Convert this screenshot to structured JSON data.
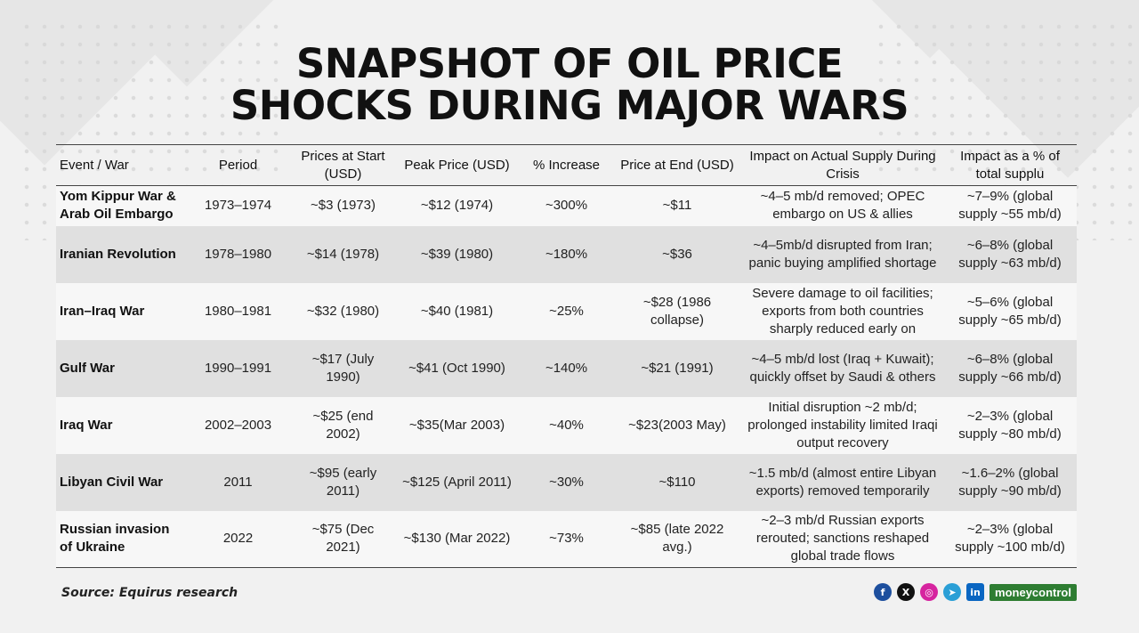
{
  "title": {
    "line1": "SNAPSHOT OF OIL PRICE",
    "line2": "SHOCKS DURING MAJOR WARS"
  },
  "table": {
    "headers": [
      "Event / War",
      "Period",
      "Prices at Start (USD)",
      "Peak Price (USD)",
      "% Increase",
      "Price at End (USD)",
      "Impact on Actual Supply During Crisis",
      "Impact as a % of total supplu"
    ],
    "rows": [
      [
        "Yom Kippur War & Arab Oil Embargo",
        "1973–1974",
        "~$3 (1973)",
        "~$12 (1974)",
        "~300%",
        "~$11",
        "~4–5 mb/d removed; OPEC embargo on US & allies",
        "~7–9% (global supply ~55 mb/d)"
      ],
      [
        "Iranian Revolution",
        "1978–1980",
        "~$14 (1978)",
        "~$39 (1980)",
        "~180%",
        "~$36",
        "~4–5mb/d disrupted from Iran; panic buying amplified shortage",
        "~6–8% (global supply ~63 mb/d)"
      ],
      [
        "Iran–Iraq War",
        "1980–1981",
        "~$32 (1980)",
        "~$40 (1981)",
        "~25%",
        "~$28 (1986 collapse)",
        "Severe damage to oil facilities; exports from both countries sharply reduced early on",
        "~5–6% (global supply ~65 mb/d)"
      ],
      [
        "Gulf War",
        "1990–1991",
        "~$17 (July 1990)",
        "~$41 (Oct 1990)",
        "~140%",
        "~$21 (1991)",
        "~4–5 mb/d lost (Iraq + Kuwait); quickly offset by Saudi & others",
        "~6–8% (global supply ~66 mb/d)"
      ],
      [
        "Iraq War",
        "2002–2003",
        "~$25 (end 2002)",
        "~$35(Mar 2003)",
        "~40%",
        "~$23(2003 May)",
        "Initial disruption ~2 mb/d; prolonged instability limited Iraqi output recovery",
        "~2–3% (global supply ~80 mb/d)"
      ],
      [
        "Libyan Civil War",
        "2011",
        "~$95 (early 2011)",
        "~$125 (April 2011)",
        "~30%",
        "~$110",
        "~1.5 mb/d (almost entire Libyan exports) removed temporarily",
        "~1.6–2% (global supply ~90 mb/d)"
      ],
      [
        "Russian invasion of Ukraine",
        "2022",
        "~$75 (Dec 2021)",
        "~$130 (Mar 2022)",
        "~73%",
        "~$85 (late 2022 avg.)",
        "~2–3 mb/d Russian exports rerouted; sanctions reshaped global trade flows",
        "~2–3% (global supply ~100 mb/d)"
      ]
    ]
  },
  "footer": {
    "source": "Source: Equirus research",
    "brand": "moneycontrol",
    "social_icons": [
      {
        "name": "facebook-icon",
        "glyph": "f"
      },
      {
        "name": "x-icon",
        "glyph": "X"
      },
      {
        "name": "instagram-icon",
        "glyph": "◎"
      },
      {
        "name": "telegram-icon",
        "glyph": "➤"
      },
      {
        "name": "linkedin-icon",
        "glyph": "in"
      }
    ]
  }
}
